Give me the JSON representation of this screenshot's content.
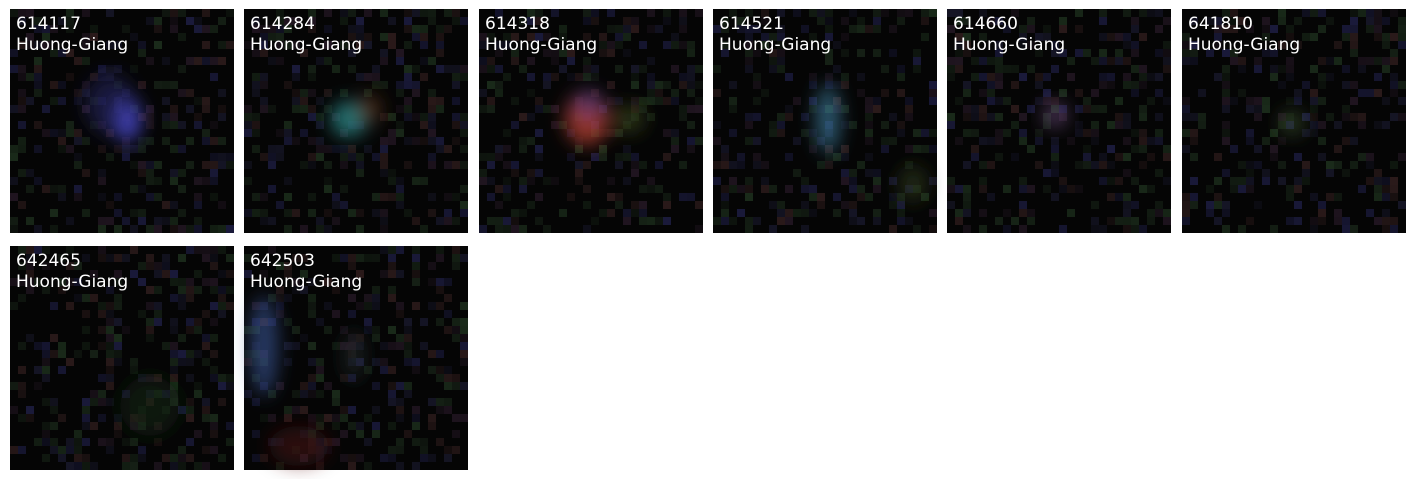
{
  "panels": [
    {
      "id": "614117",
      "name": "Huong-Giang"
    },
    {
      "id": "614284",
      "name": "Huong-Giang"
    },
    {
      "id": "614318",
      "name": "Huong-Giang"
    },
    {
      "id": "614521",
      "name": "Huong-Giang"
    },
    {
      "id": "614660",
      "name": "Huong-Giang"
    },
    {
      "id": "641810",
      "name": "Huong-Giang"
    },
    {
      "id": "642465",
      "name": "Huong-Giang"
    },
    {
      "id": "642503",
      "name": "Huong-Giang"
    }
  ]
}
